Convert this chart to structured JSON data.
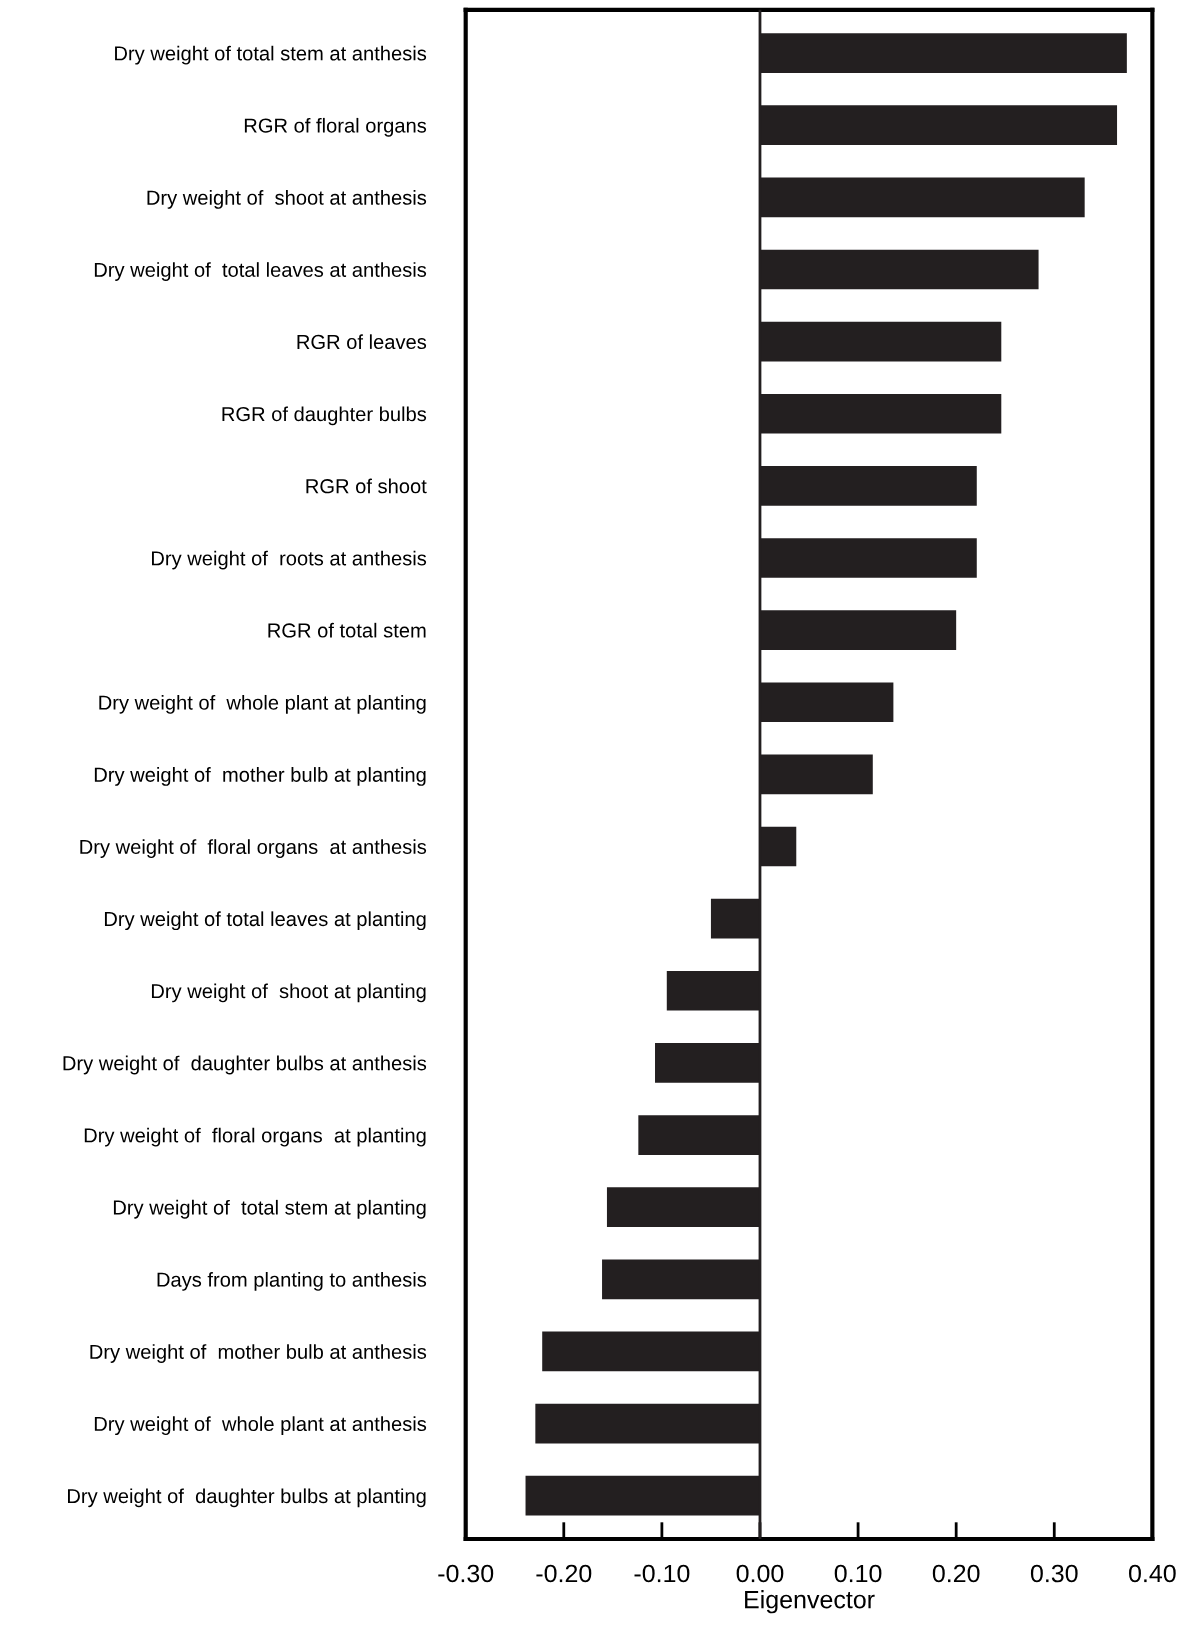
{
  "chart_data": {
    "type": "bar",
    "orientation": "horizontal",
    "xlabel": "Eigenvector",
    "categories": [
      "Dry weight of total stem at anthesis",
      "RGR of floral organs",
      "Dry weight of  shoot at anthesis",
      "Dry weight of  total leaves at anthesis",
      "RGR of leaves",
      "RGR of daughter bulbs",
      "RGR of shoot",
      "Dry weight of  roots at anthesis",
      "RGR of total stem",
      "Dry weight of  whole plant at planting",
      "Dry weight of  mother bulb at planting",
      "Dry weight of  floral organs  at anthesis",
      "Dry weight of total leaves at planting",
      "Dry weight of  shoot at planting",
      "Dry weight of  daughter bulbs at anthesis",
      "Dry weight of  floral organs  at planting",
      "Dry weight of  total stem at planting",
      "Days from planting to anthesis",
      "Dry weight of  mother bulb at anthesis",
      "Dry weight of  whole plant at anthesis",
      "Dry weight of  daughter bulbs at planting"
    ],
    "values": [
      0.374,
      0.364,
      0.331,
      0.284,
      0.246,
      0.246,
      0.221,
      0.221,
      0.2,
      0.136,
      0.115,
      0.037,
      -0.05,
      -0.095,
      -0.107,
      -0.124,
      -0.156,
      -0.161,
      -0.222,
      -0.229,
      -0.239
    ],
    "color": "#231f20",
    "xlim": [
      -0.3,
      0.4
    ],
    "xticks": [
      {
        "value": -0.3,
        "label": "-0.30"
      },
      {
        "value": -0.2,
        "label": "-0.20"
      },
      {
        "value": -0.1,
        "label": "-0.10"
      },
      {
        "value": 0,
        "label": "0.00"
      },
      {
        "value": 0.1,
        "label": "0.10"
      },
      {
        "value": 0.2,
        "label": "0.20"
      },
      {
        "value": 0.3,
        "label": "0.30"
      },
      {
        "value": 0.4,
        "label": "0.40"
      }
    ],
    "ref_lines": [
      {
        "axis": "x",
        "value": 0,
        "color": "#231f20"
      }
    ],
    "grid": false,
    "legend": false
  }
}
